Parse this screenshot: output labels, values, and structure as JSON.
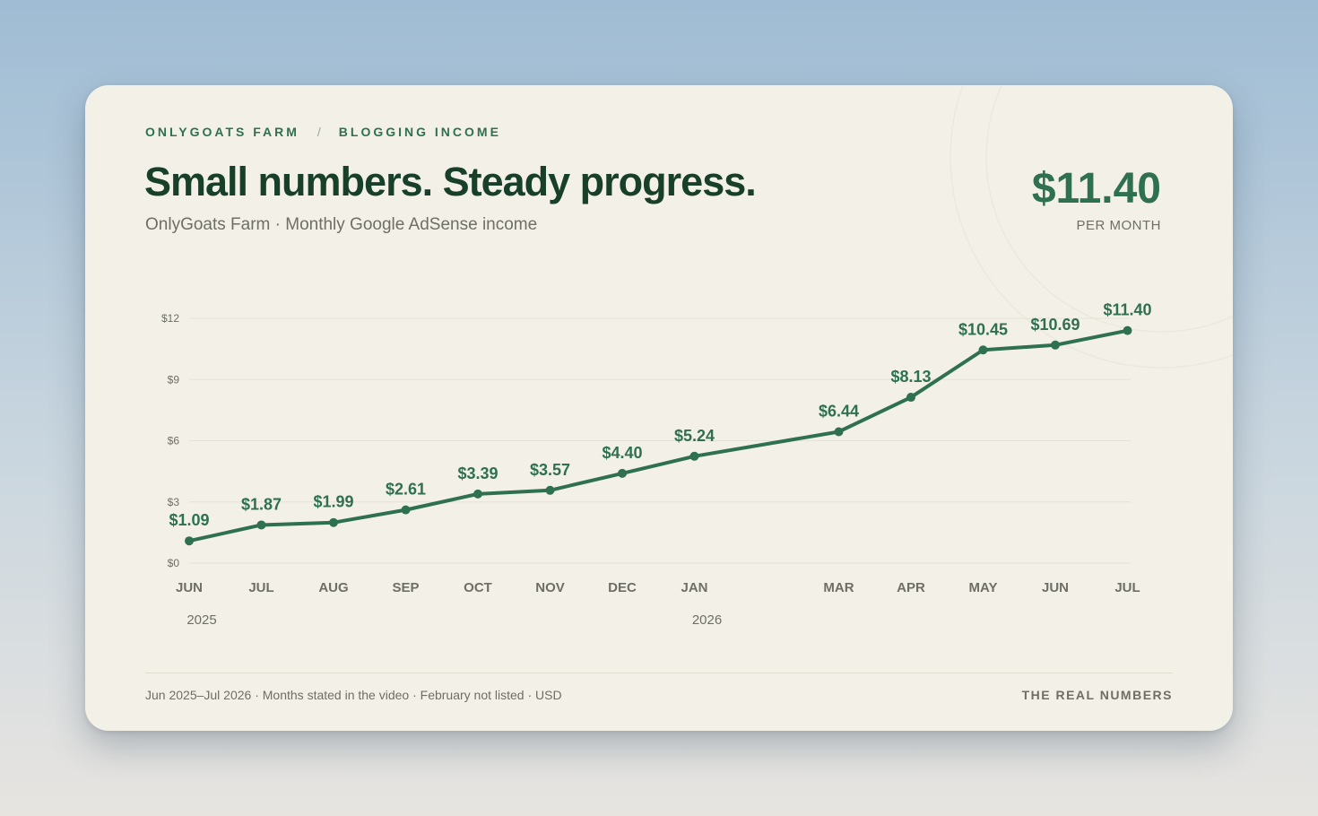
{
  "breadcrumb": {
    "brand": "ONLYGOATS FARM",
    "separator": "/",
    "section": "BLOGGING INCOME"
  },
  "header": {
    "title": "Small numbers. Steady progress.",
    "subtitle": "OnlyGoats Farm · Monthly Google AdSense income"
  },
  "kpi": {
    "value": "$11.40",
    "label": "PER MONTH"
  },
  "footer": {
    "note": "Jun 2025–Jul 2026 · Months stated in the video · February not listed · USD",
    "signature": "THE REAL NUMBERS"
  },
  "colors": {
    "accent": "#2e7050",
    "title": "#173f2a",
    "muted": "#6e6e66",
    "card": "#f3f1e7",
    "grid": "#e4e1d5"
  },
  "chart_data": {
    "type": "line",
    "categories": [
      "JUN",
      "JUL",
      "AUG",
      "SEP",
      "OCT",
      "NOV",
      "DEC",
      "JAN",
      "MAR",
      "APR",
      "MAY",
      "JUN",
      "JUL"
    ],
    "month_index": [
      0,
      1,
      2,
      3,
      4,
      5,
      6,
      7,
      9,
      10,
      11,
      12,
      13
    ],
    "values": [
      1.09,
      1.87,
      1.99,
      2.61,
      3.39,
      3.57,
      4.4,
      5.24,
      6.44,
      8.13,
      10.45,
      10.69,
      11.4
    ],
    "value_labels": [
      "$1.09",
      "$1.87",
      "$1.99",
      "$2.61",
      "$3.39",
      "$3.57",
      "$4.40",
      "$5.24",
      "$6.44",
      "$8.13",
      "$10.45",
      "$10.69",
      "$11.40"
    ],
    "year_labels": [
      {
        "label": "2025",
        "at_month_index": 0
      },
      {
        "label": "2026",
        "at_month_index": 7
      }
    ],
    "y_ticks": [
      0,
      3,
      6,
      9,
      12
    ],
    "y_tick_labels": [
      "$0",
      "$3",
      "$6",
      "$9",
      "$12"
    ],
    "ylim": [
      0,
      12
    ],
    "grid": true,
    "title": "",
    "xlabel": "",
    "ylabel": ""
  }
}
